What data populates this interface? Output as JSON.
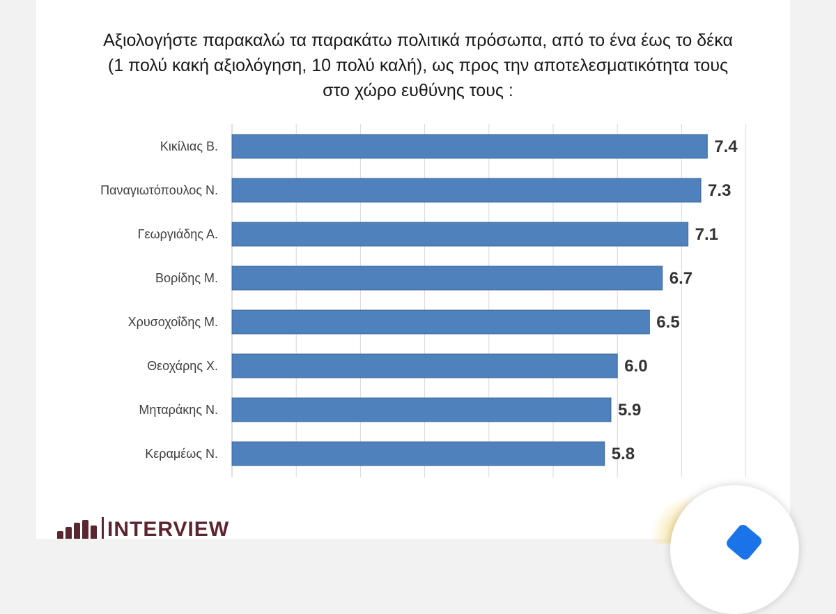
{
  "chart_data": {
    "type": "bar",
    "orientation": "horizontal",
    "title": "Αξιολογήστε παρακαλώ τα παρακάτω πολιτικά πρόσωπα, από το ένα έως το δέκα (1 πολύ κακή αξιολόγηση, 10 πολύ καλή), ως προς την αποτελεσματικότητα τους στο χώρο ευθύνης τους :",
    "title_lines": [
      "Αξιολογήστε παρακαλώ τα παρακάτω πολιτικά πρόσωπα, από το ένα έως το δέκα",
      "(1 πολύ κακή αξιολόγηση, 10 πολύ καλή), ως προς την αποτελεσματικότητα τους",
      "στο χώρο ευθύνης τους :"
    ],
    "categories": [
      "Κικίλιας Β.",
      "Παναγιωτόπουλος Ν.",
      "Γεωργιάδης Α.",
      "Βορίδης Μ.",
      "Χρυσοχοΐδης Μ.",
      "Θεοχάρης Χ.",
      "Μηταράκης Ν.",
      "Κεραμέως Ν."
    ],
    "values": [
      7.4,
      7.3,
      7.1,
      6.7,
      6.5,
      6.0,
      5.9,
      5.8
    ],
    "data_labels": [
      "7.4",
      "7.3",
      "7.1",
      "6.7",
      "6.5",
      "6.0",
      "5.9",
      "5.8"
    ],
    "xlim": [
      0,
      8
    ],
    "grid": "vertical",
    "bar_color": "#4f81bd"
  },
  "logo": {
    "text": "INTERVIEW"
  }
}
